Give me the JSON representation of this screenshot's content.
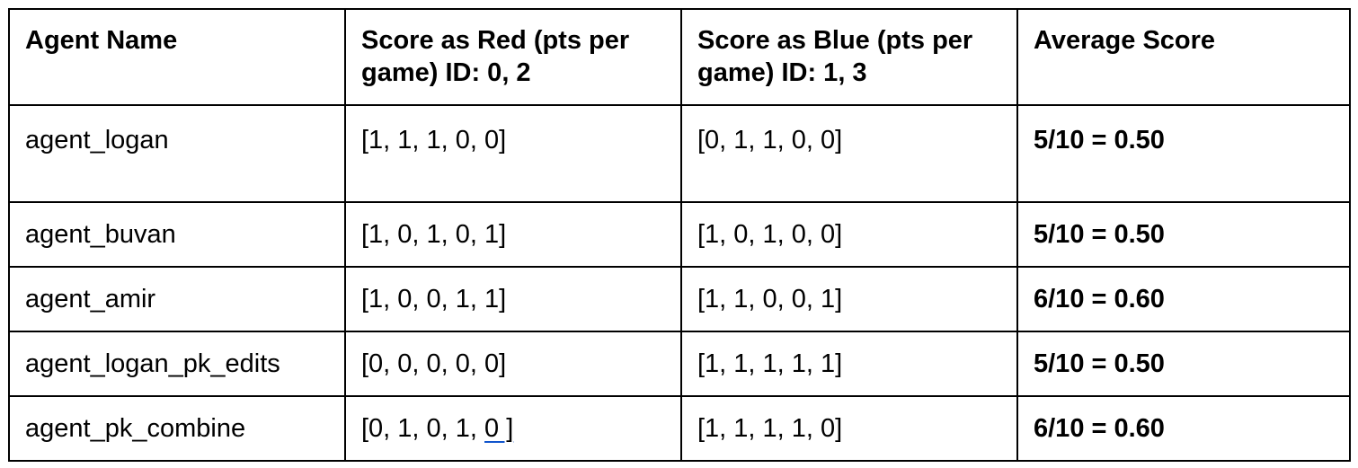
{
  "table": {
    "headers": [
      "Agent Name",
      "Score as Red (pts per game) ID: 0, 2",
      "Score as Blue (pts per game) ID: 1, 3",
      "Average Score"
    ],
    "rows": [
      {
        "agent": "agent_logan",
        "red": "[1, 1, 1, 0, 0]",
        "blue": "[0, 1, 1, 0, 0]",
        "average": "5/10 = 0.50"
      },
      {
        "agent": "agent_buvan",
        "red": "[1, 0, 1, 0, 1]",
        "blue": "[1, 0, 1, 0, 0]",
        "average": "5/10 = 0.50"
      },
      {
        "agent": "agent_amir",
        "red": "[1, 0, 0, 1, 1]",
        "blue": "[1, 1, 0, 0, 1]",
        "average": "6/10 = 0.60"
      },
      {
        "agent": "agent_logan_pk_edits",
        "red": "[0, 0, 0, 0, 0]",
        "blue": "[1, 1, 1, 1, 1]",
        "average": "5/10 = 0.50"
      },
      {
        "agent": "agent_pk_combine",
        "red_prefix": "[0, 1, 0, 1, ",
        "red_link": "0 ]",
        "blue": "[1, 1, 1, 1, 0]",
        "average": "6/10 = 0.60"
      }
    ]
  },
  "colors": {
    "border": "#000000",
    "link_underline": "#1155cc"
  }
}
